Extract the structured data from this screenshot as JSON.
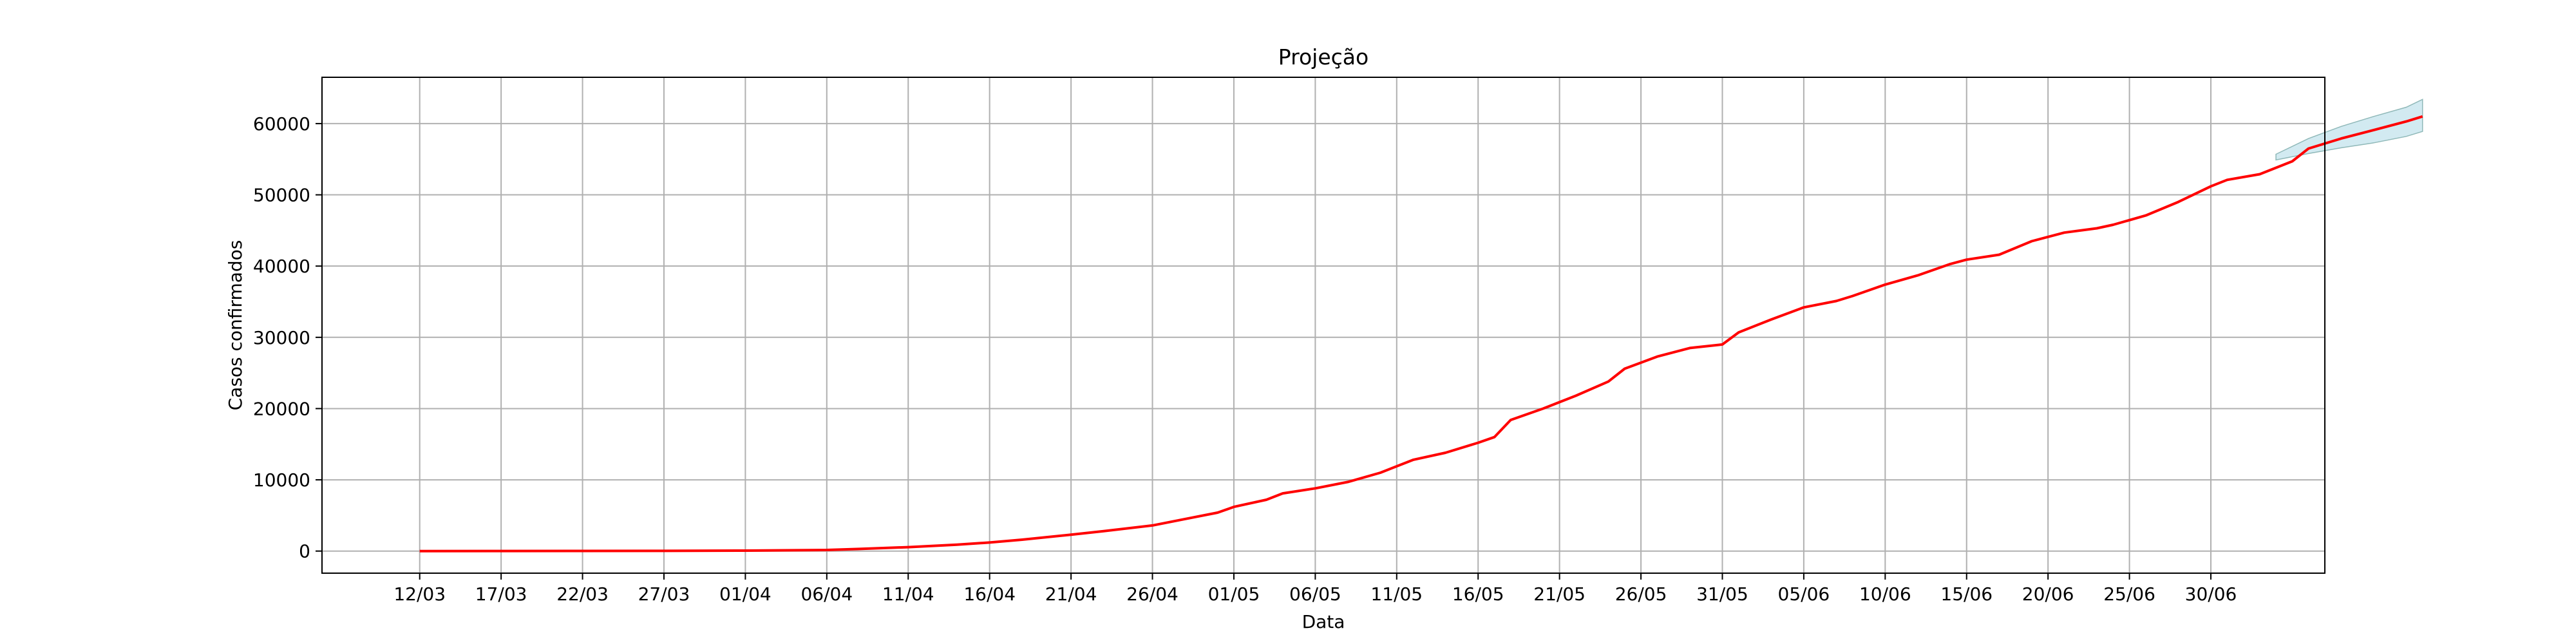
{
  "chart_data": {
    "type": "line",
    "title": "Projeção",
    "xlabel": "Data",
    "ylabel": "Casos confirmados",
    "grid": true,
    "x_ticks": [
      "12/03",
      "17/03",
      "22/03",
      "27/03",
      "01/04",
      "06/04",
      "11/04",
      "16/04",
      "21/04",
      "26/04",
      "01/05",
      "06/05",
      "11/05",
      "16/05",
      "21/05",
      "26/05",
      "31/05",
      "05/06",
      "10/06",
      "15/06",
      "20/06",
      "25/06",
      "30/06"
    ],
    "ylim": [
      -3100,
      66500
    ],
    "y_ticks": [
      0,
      10000,
      20000,
      30000,
      40000,
      50000,
      60000
    ],
    "y_tick_labels": [
      "0",
      "10000",
      "20000",
      "30000",
      "40000",
      "50000",
      "60000"
    ],
    "x_range": [
      "2020-03-06",
      "2020-07-07"
    ],
    "series": [
      {
        "type": "line",
        "color": "#ff0000",
        "points": [
          [
            "2020-03-12",
            0
          ],
          [
            "2020-03-17",
            5
          ],
          [
            "2020-03-22",
            15
          ],
          [
            "2020-03-27",
            30
          ],
          [
            "2020-04-01",
            60
          ],
          [
            "2020-04-06",
            150
          ],
          [
            "2020-04-08",
            300
          ],
          [
            "2020-04-11",
            550
          ],
          [
            "2020-04-14",
            900
          ],
          [
            "2020-04-16",
            1200
          ],
          [
            "2020-04-18",
            1600
          ],
          [
            "2020-04-21",
            2300
          ],
          [
            "2020-04-23",
            2800
          ],
          [
            "2020-04-26",
            3600
          ],
          [
            "2020-04-28",
            4500
          ],
          [
            "2020-04-30",
            5400
          ],
          [
            "2020-05-01",
            6200
          ],
          [
            "2020-05-03",
            7200
          ],
          [
            "2020-05-04",
            8100
          ],
          [
            "2020-05-06",
            8800
          ],
          [
            "2020-05-08",
            9700
          ],
          [
            "2020-05-10",
            11000
          ],
          [
            "2020-05-12",
            12800
          ],
          [
            "2020-05-14",
            13800
          ],
          [
            "2020-05-16",
            15200
          ],
          [
            "2020-05-17",
            16000
          ],
          [
            "2020-05-18",
            18400
          ],
          [
            "2020-05-20",
            20000
          ],
          [
            "2020-05-22",
            21800
          ],
          [
            "2020-05-24",
            23800
          ],
          [
            "2020-05-25",
            25600
          ],
          [
            "2020-05-27",
            27300
          ],
          [
            "2020-05-29",
            28500
          ],
          [
            "2020-05-31",
            29000
          ],
          [
            "2020-06-01",
            30700
          ],
          [
            "2020-06-03",
            32500
          ],
          [
            "2020-06-05",
            34200
          ],
          [
            "2020-06-07",
            35100
          ],
          [
            "2020-06-08",
            35800
          ],
          [
            "2020-06-10",
            37400
          ],
          [
            "2020-06-12",
            38700
          ],
          [
            "2020-06-14",
            40300
          ],
          [
            "2020-06-15",
            40900
          ],
          [
            "2020-06-17",
            41600
          ],
          [
            "2020-06-19",
            43500
          ],
          [
            "2020-06-21",
            44700
          ],
          [
            "2020-06-23",
            45300
          ],
          [
            "2020-06-24",
            45800
          ],
          [
            "2020-06-26",
            47100
          ],
          [
            "2020-06-28",
            49000
          ],
          [
            "2020-06-30",
            51200
          ],
          [
            "2020-07-01",
            52100
          ],
          [
            "2020-07-03",
            52900
          ],
          [
            "2020-07-05",
            54700
          ],
          [
            "2020-07-06",
            56500
          ],
          [
            "2020-07-08",
            57900
          ],
          [
            "2020-07-10",
            59100
          ],
          [
            "2020-07-12",
            60300
          ],
          [
            "2020-07-13",
            61000
          ]
        ]
      },
      {
        "type": "band",
        "color": "#add8e6",
        "upper": [
          [
            "2020-07-04",
            55700
          ],
          [
            "2020-07-06",
            57900
          ],
          [
            "2020-07-08",
            59600
          ],
          [
            "2020-07-10",
            61000
          ],
          [
            "2020-07-12",
            62300
          ],
          [
            "2020-07-13",
            63400
          ]
        ],
        "lower": [
          [
            "2020-07-04",
            54900
          ],
          [
            "2020-07-06",
            55800
          ],
          [
            "2020-07-08",
            56600
          ],
          [
            "2020-07-10",
            57300
          ],
          [
            "2020-07-12",
            58200
          ],
          [
            "2020-07-13",
            58900
          ]
        ]
      }
    ]
  }
}
